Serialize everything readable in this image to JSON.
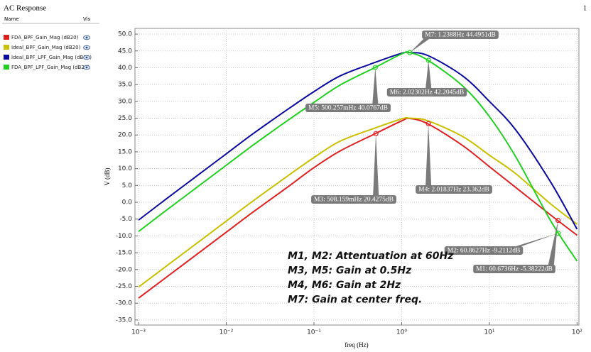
{
  "window_title": "AC Response",
  "page_number": "1",
  "legend_header": {
    "name": "Name",
    "vis": "Vis"
  },
  "chart_data": {
    "type": "line",
    "xlabel": "freq (Hz)",
    "ylabel": "V (dB)",
    "log_x": true,
    "grid": true,
    "xlim": [
      0.00091,
      105
    ],
    "ylim": [
      -36.5,
      51.7
    ],
    "xticks": [
      {
        "value": 0.001,
        "label": "10⁻³"
      },
      {
        "value": 0.01,
        "label": "10⁻²"
      },
      {
        "value": 0.1,
        "label": "10⁻¹"
      },
      {
        "value": 1,
        "label": "10⁰"
      },
      {
        "value": 10,
        "label": "10¹"
      },
      {
        "value": 100,
        "label": "10²"
      }
    ],
    "yticks": [
      {
        "value": 50,
        "label": "50.0"
      },
      {
        "value": 45,
        "label": "45.0"
      },
      {
        "value": 40,
        "label": "40.0"
      },
      {
        "value": 35,
        "label": "35.0"
      },
      {
        "value": 30,
        "label": "30.0"
      },
      {
        "value": 25,
        "label": "25.0"
      },
      {
        "value": 20,
        "label": "20.0"
      },
      {
        "value": 15,
        "label": "15.0"
      },
      {
        "value": 10,
        "label": "10.0"
      },
      {
        "value": 5,
        "label": "5.0"
      },
      {
        "value": 0,
        "label": "0.0"
      },
      {
        "value": -5,
        "label": "-5.0"
      },
      {
        "value": -10,
        "label": "-10.0"
      },
      {
        "value": -15,
        "label": "-15.0"
      },
      {
        "value": -20,
        "label": "-20.0"
      },
      {
        "value": -25,
        "label": "-25.0"
      },
      {
        "value": -30,
        "label": "-30.0"
      },
      {
        "value": -35,
        "label": "-35.0"
      }
    ],
    "x": [
      0.001,
      0.002,
      0.005,
      0.01,
      0.02,
      0.05,
      0.1,
      0.2,
      0.5,
      1,
      1.2388,
      2,
      5,
      10,
      20,
      50,
      100
    ],
    "series": [
      {
        "name": "FDA_BPF_Gain_Mag (dB20)",
        "color": "#e02020",
        "values": [
          -28.5,
          -22.6,
          -14.8,
          -8.9,
          -3,
          4.5,
          10.3,
          15.3,
          20.4,
          24.2,
          24.9,
          23.3,
          16.8,
          10.6,
          4.4,
          -3.8,
          -9.8
        ]
      },
      {
        "name": "Ideal_BPF_Gain_Mag (dB20)",
        "color": "#c8c000",
        "values": [
          -25.2,
          -19.3,
          -11.5,
          -5.6,
          0.3,
          7.8,
          13.3,
          18.2,
          22.1,
          24.8,
          25,
          24.2,
          19.5,
          14,
          8.5,
          -0.5,
          -6.5
        ]
      },
      {
        "name": "Ideal_BPF_LPF_Gain_Mag (dB20)",
        "color": "#0a0aa0",
        "values": [
          -5.3,
          0.7,
          8.5,
          14.4,
          20.3,
          27.6,
          32.9,
          37.6,
          41.6,
          44.3,
          44.5,
          43.6,
          37.5,
          30,
          21.5,
          6,
          -8
        ]
      },
      {
        "name": "FDA_BPF_LPF_Gain_Mag (dB20)",
        "color": "#20d020",
        "values": [
          -8.7,
          -2.7,
          5.1,
          11,
          16.9,
          24.3,
          29.7,
          34.9,
          40.1,
          44.1,
          44.5,
          42.2,
          34.5,
          25.5,
          13.5,
          -5.5,
          -17.5
        ]
      }
    ],
    "markers": [
      {
        "label": "M1: 60.6736Hz -5.38222dB",
        "x": 60.6736,
        "y": -5.38222,
        "color": "#e02020"
      },
      {
        "label": "M2: 60.8627Hz -9.2112dB",
        "x": 60.8627,
        "y": -9.2112,
        "color": "#20d020"
      },
      {
        "label": "M3: 508.159mHz 20.4275dB",
        "x": 0.508159,
        "y": 20.4275,
        "color": "#e02020"
      },
      {
        "label": "M4: 2.01837Hz 23.362dB",
        "x": 2.01837,
        "y": 23.362,
        "color": "#e02020"
      },
      {
        "label": "M5: 500.257mHz 40.0767dB",
        "x": 0.500257,
        "y": 40.0767,
        "color": "#20d020"
      },
      {
        "label": "M6: 2.02302Hz 42.2045dB",
        "x": 2.02302,
        "y": 42.2045,
        "color": "#20d020"
      },
      {
        "label": "M7: 1.2388Hz 44.4951dB",
        "x": 1.2388,
        "y": 44.4951,
        "color": "#20d020"
      }
    ],
    "annotations": [
      "M1, M2: Attentuation at 60Hz",
      "M3, M5: Gain at 0.5Hz",
      "M4, M6: Gain at 2Hz",
      "M7: Gain at center freq."
    ]
  }
}
